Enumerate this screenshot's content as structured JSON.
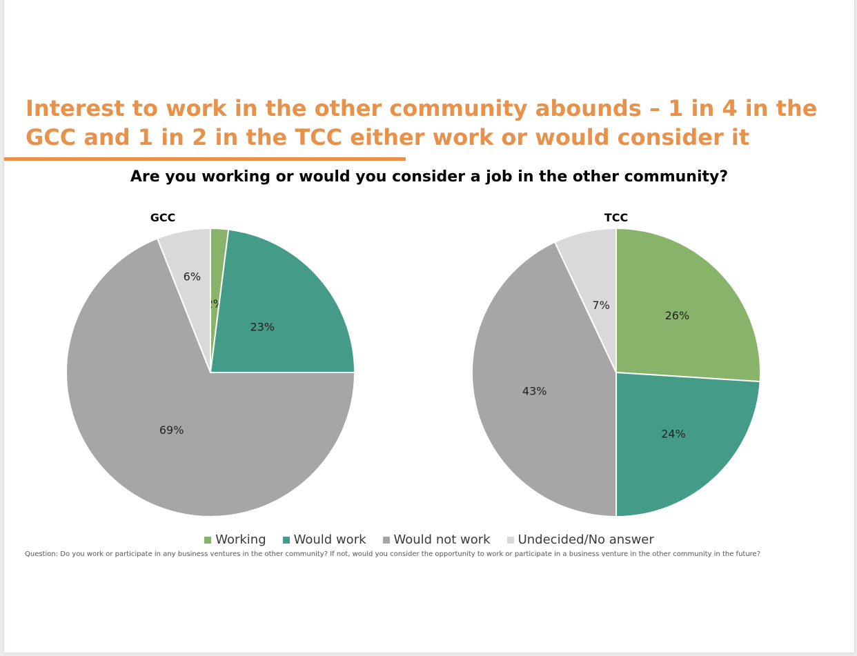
{
  "title": "Interest to work in the other community abounds – 1 in 4 in the GCC and 1 in 2 in the TCC either work or would consider it",
  "subtitle": "Are you working or would you consider a job in the other community?",
  "colors": {
    "accent": "#e8914a",
    "Working": "#88b36a",
    "Would work": "#449b87",
    "Would not work": "#a6a6a6",
    "Undecided/No answer": "#d9d9d9"
  },
  "legend": [
    "Working",
    "Would work",
    "Would not work",
    "Undecided/No answer"
  ],
  "footnote": "Question: Do you work or participate in any business ventures in the other community? If not, would you consider the opportunity to work or participate in a business venture in the other community in the future?",
  "chart_data": [
    {
      "type": "pie",
      "title": "GCC",
      "categories": [
        "Working",
        "Would work",
        "Would not work",
        "Undecided/No answer"
      ],
      "values": [
        2,
        23,
        69,
        6
      ],
      "labels": [
        "2%",
        "23%",
        "69%",
        "6%"
      ],
      "legend_position": "bottom"
    },
    {
      "type": "pie",
      "title": "TCC",
      "categories": [
        "Working",
        "Would work",
        "Would not work",
        "Undecided/No answer"
      ],
      "values": [
        26,
        24,
        43,
        7
      ],
      "labels": [
        "26%",
        "24%",
        "43%",
        "7%"
      ],
      "legend_position": "bottom"
    }
  ]
}
